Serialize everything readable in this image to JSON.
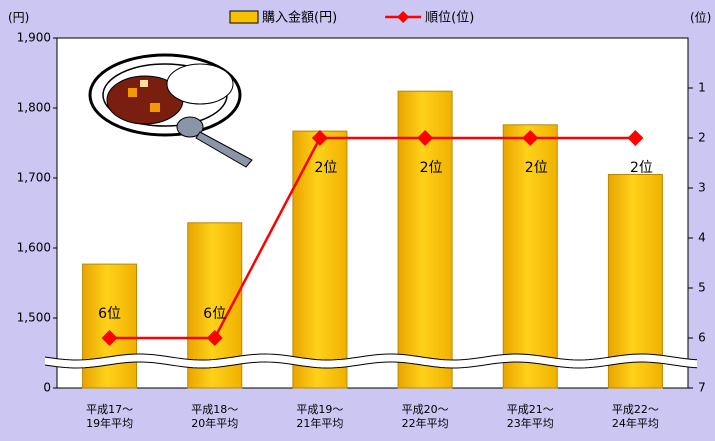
{
  "chart_data": {
    "type": "bar_line",
    "categories": [
      "平成17～\n19年平均",
      "平成18～\n20年平均",
      "平成19～\n21年平均",
      "平成20～\n22年平均",
      "平成21～\n23年平均",
      "平成22～\n24年平均"
    ],
    "y_axis_label": "(円)",
    "y2_axis_label": "(位)",
    "axis_break": true,
    "ylim": [
      0,
      1900
    ],
    "yticks": [
      0,
      {
        "value": 1500,
        "label": "1,500"
      },
      {
        "value": 1600,
        "label": "1,600"
      },
      {
        "value": 1700,
        "label": "1,700"
      },
      {
        "value": 1800,
        "label": "1,800"
      },
      {
        "value": 1900,
        "label": "1,900"
      }
    ],
    "y2lim": [
      7,
      0
    ],
    "y2ticks": [
      1,
      2,
      3,
      4,
      5,
      6,
      7
    ],
    "series": [
      {
        "name": "購入金額(円)",
        "type": "bar",
        "color": "#f7c200",
        "values": [
          1577,
          1636,
          1767,
          1824,
          1776,
          1705
        ]
      },
      {
        "name": "順位(位)",
        "type": "line",
        "axis": "y2",
        "color": "#ff0000",
        "values": [
          6,
          6,
          2,
          2,
          2,
          2
        ],
        "value_labels": [
          "6位",
          "6位",
          "2位",
          "2位",
          "2位",
          "2位"
        ]
      }
    ]
  }
}
